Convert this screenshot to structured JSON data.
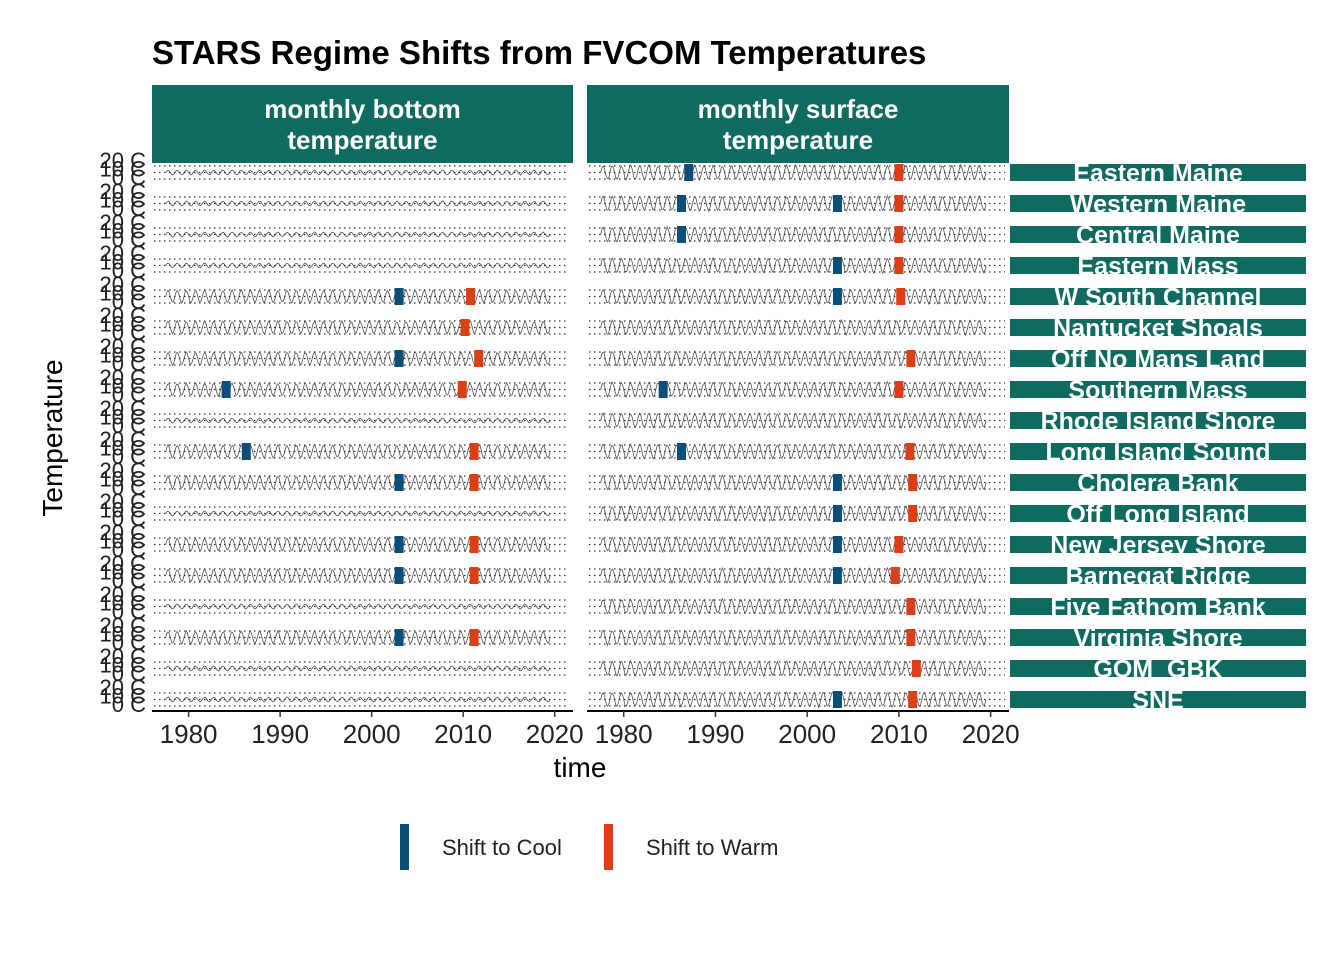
{
  "chart_data": {
    "type": "line",
    "title": "STARS Regime Shifts from FVCOM Temperatures",
    "xlabel": "time",
    "ylabel": "Temperature",
    "xlim": [
      1976,
      2022
    ],
    "x_ticks": [
      1980,
      1990,
      2000,
      2010,
      2020
    ],
    "y_ticks": [
      "0 C",
      "10 C",
      "20 C"
    ],
    "ylim": [
      0,
      20
    ],
    "grid": false,
    "legend_position": "bottom",
    "colors": {
      "strip": "#0f6a5f",
      "cool": "#0c4e7a",
      "warm": "#dc3e16",
      "line": "#333333"
    },
    "panels": [
      "monthly bottom\ntemperature",
      "monthly surface\ntemperature"
    ],
    "regions": [
      {
        "name": "Eastern Maine",
        "shifts": [
          [],
          [
            [
              1987.1,
              "cool"
            ],
            [
              2010.0,
              "warm"
            ]
          ]
        ]
      },
      {
        "name": "Western Maine",
        "shifts": [
          [],
          [
            [
              1986.3,
              "cool"
            ],
            [
              2003.3,
              "cool"
            ],
            [
              2010.0,
              "warm"
            ]
          ]
        ]
      },
      {
        "name": "Central Maine",
        "shifts": [
          [],
          [
            [
              1986.3,
              "cool"
            ],
            [
              2010.0,
              "warm"
            ]
          ]
        ]
      },
      {
        "name": "Eastern Mass",
        "shifts": [
          [],
          [
            [
              2003.3,
              "cool"
            ],
            [
              2010.0,
              "warm"
            ]
          ]
        ]
      },
      {
        "name": "W South Channel",
        "shifts": [
          [
            [
              2003.0,
              "cool"
            ],
            [
              2010.8,
              "warm"
            ]
          ],
          [
            [
              2003.3,
              "cool"
            ],
            [
              2010.2,
              "warm"
            ]
          ]
        ]
      },
      {
        "name": "Nantucket Shoals",
        "shifts": [
          [
            [
              2010.2,
              "warm"
            ]
          ],
          []
        ]
      },
      {
        "name": "Off No Mans Land",
        "shifts": [
          [
            [
              2003.0,
              "cool"
            ],
            [
              2011.7,
              "warm"
            ]
          ],
          [
            [
              2011.3,
              "warm"
            ]
          ]
        ]
      },
      {
        "name": "Southern Mass",
        "shifts": [
          [
            [
              1984.1,
              "cool"
            ],
            [
              2009.9,
              "warm"
            ]
          ],
          [
            [
              1984.3,
              "cool"
            ],
            [
              2010.0,
              "warm"
            ]
          ]
        ]
      },
      {
        "name": "Rhode Island Shore",
        "shifts": [
          [],
          []
        ]
      },
      {
        "name": "Long Island Sound",
        "shifts": [
          [
            [
              1986.3,
              "cool"
            ],
            [
              2011.2,
              "warm"
            ]
          ],
          [
            [
              1986.3,
              "cool"
            ],
            [
              2011.2,
              "warm"
            ]
          ]
        ]
      },
      {
        "name": "Cholera Bank",
        "shifts": [
          [
            [
              2003.0,
              "cool"
            ],
            [
              2011.2,
              "warm"
            ]
          ],
          [
            [
              2003.3,
              "cool"
            ],
            [
              2011.5,
              "warm"
            ]
          ]
        ]
      },
      {
        "name": "Off Long Island",
        "shifts": [
          [],
          [
            [
              2003.3,
              "cool"
            ],
            [
              2011.5,
              "warm"
            ]
          ]
        ]
      },
      {
        "name": "New Jersey Shore",
        "shifts": [
          [
            [
              2003.0,
              "cool"
            ],
            [
              2011.2,
              "warm"
            ]
          ],
          [
            [
              2003.3,
              "cool"
            ],
            [
              2010.0,
              "warm"
            ]
          ]
        ]
      },
      {
        "name": "Barnegat Ridge",
        "shifts": [
          [
            [
              2003.0,
              "cool"
            ],
            [
              2011.2,
              "warm"
            ]
          ],
          [
            [
              2003.3,
              "cool"
            ],
            [
              2009.6,
              "warm"
            ]
          ]
        ]
      },
      {
        "name": "Five Fathom Bank",
        "shifts": [
          [],
          [
            [
              2011.3,
              "warm"
            ]
          ]
        ]
      },
      {
        "name": "Virginia Shore",
        "shifts": [
          [
            [
              2003.0,
              "cool"
            ],
            [
              2011.2,
              "warm"
            ]
          ],
          [
            [
              2011.3,
              "warm"
            ]
          ]
        ]
      },
      {
        "name": "GOM_GBK",
        "shifts": [
          [],
          [
            [
              2011.9,
              "warm"
            ]
          ]
        ]
      },
      {
        "name": "SNE",
        "shifts": [
          [],
          [
            [
              2003.3,
              "cool"
            ],
            [
              2011.5,
              "warm"
            ]
          ]
        ]
      }
    ],
    "legend": [
      {
        "label": "Shift to Cool",
        "key": "cool"
      },
      {
        "label": "Shift to Warm",
        "key": "warm"
      }
    ]
  }
}
